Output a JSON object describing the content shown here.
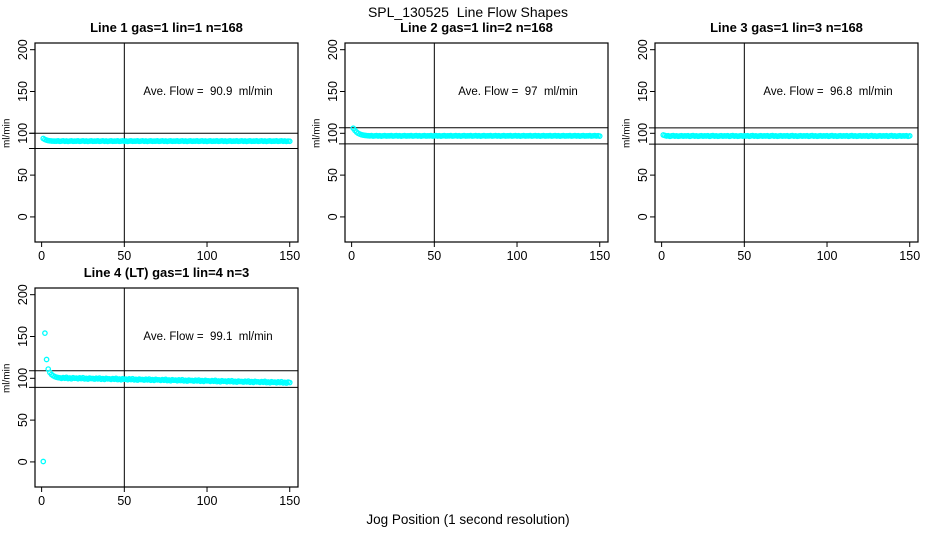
{
  "page": {
    "title": "SPL_130525  Line Flow Shapes",
    "xlabel": "Jog Position (1 second resolution)"
  },
  "style": {
    "point_color": "#00ffff",
    "line_color": "#000000",
    "background": "#ffffff"
  },
  "chart_data": [
    {
      "type": "scatter",
      "title": "Line 1 gas=1 lin=1 n=168",
      "annotation": "Ave. Flow =  90.9  ml/min",
      "ave_flow_ml_min": 90.9,
      "ylabel": "ml/min",
      "xlim": [
        -4,
        155
      ],
      "ylim": [
        -30,
        208
      ],
      "xticks": [
        0,
        50,
        100,
        150
      ],
      "yticks": [
        0,
        50,
        100,
        150,
        200
      ],
      "vline_x": 50,
      "hlines": [
        100.0,
        81.8
      ],
      "x_start": 1,
      "x_step": 1,
      "y": [
        93.8,
        92.6,
        91.8,
        91.3,
        91.0,
        90.8,
        90.7,
        90.6,
        90.6,
        90.9,
        90.4,
        90.7,
        91.0,
        90.5,
        90.8,
        90.3,
        90.7,
        90.9,
        90.5,
        90.6,
        90.6,
        90.9,
        90.4,
        90.7,
        91.0,
        90.5,
        90.8,
        90.3,
        90.7,
        90.9,
        90.5,
        90.6,
        90.6,
        90.9,
        90.4,
        90.7,
        91.0,
        90.5,
        90.8,
        90.3,
        90.7,
        90.9,
        90.5,
        90.6,
        90.6,
        90.9,
        90.4,
        90.7,
        91.0,
        90.5,
        90.8,
        90.3,
        90.7,
        90.9,
        90.5,
        90.6,
        90.6,
        90.9,
        90.4,
        90.7,
        91.0,
        90.5,
        90.8,
        90.3,
        90.7,
        90.9,
        90.5,
        90.6,
        90.6,
        90.9,
        90.4,
        90.7,
        91.0,
        90.5,
        90.8,
        90.3,
        90.7,
        90.9,
        90.5,
        90.6,
        90.6,
        90.9,
        90.4,
        90.7,
        91.0,
        90.5,
        90.8,
        90.3,
        90.7,
        90.9,
        90.5,
        90.6,
        90.6,
        90.9,
        90.4,
        90.7,
        91.0,
        90.5,
        90.8,
        90.3,
        90.7,
        90.9,
        90.5,
        90.6,
        90.6,
        90.9,
        90.4,
        90.7,
        91.0,
        90.5,
        90.8,
        90.3,
        90.7,
        90.9,
        90.5,
        90.6,
        90.6,
        90.9,
        90.4,
        90.7,
        91.0,
        90.5,
        90.8,
        90.3,
        90.7,
        90.9,
        90.5,
        90.6,
        90.6,
        90.9,
        90.4,
        90.7,
        91.0,
        90.5,
        90.8,
        90.3,
        90.7,
        90.9,
        90.5,
        90.6,
        90.6,
        90.9,
        90.4,
        90.7,
        91.0,
        90.5,
        90.8,
        90.3,
        90.7,
        90.5
      ]
    },
    {
      "type": "scatter",
      "title": "Line 2 gas=1 lin=2 n=168",
      "annotation": "Ave. Flow =  97  ml/min",
      "ave_flow_ml_min": 97,
      "ylabel": "ml/min",
      "xlim": [
        -4,
        155
      ],
      "ylim": [
        -30,
        208
      ],
      "xticks": [
        0,
        50,
        100,
        150
      ],
      "yticks": [
        0,
        50,
        100,
        150,
        200
      ],
      "vline_x": 50,
      "hlines": [
        106.7,
        87.3
      ],
      "x_start": 1,
      "x_step": 1,
      "y": [
        106.0,
        103.5,
        101.5,
        100.0,
        99.0,
        98.3,
        97.8,
        97.5,
        97.3,
        97.1,
        96.9,
        97.2,
        96.7,
        97.0,
        97.3,
        96.8,
        97.1,
        96.6,
        97.0,
        97.2,
        96.8,
        96.9,
        96.9,
        97.2,
        96.7,
        97.0,
        97.3,
        96.8,
        97.1,
        96.6,
        97.0,
        97.2,
        96.8,
        96.9,
        96.9,
        97.2,
        96.7,
        97.0,
        97.3,
        96.8,
        97.1,
        96.6,
        97.0,
        97.2,
        96.8,
        96.9,
        96.9,
        97.2,
        96.7,
        97.0,
        97.3,
        96.8,
        97.1,
        96.6,
        97.0,
        97.2,
        96.8,
        96.9,
        96.9,
        97.2,
        96.7,
        97.0,
        97.3,
        96.8,
        97.1,
        96.6,
        97.0,
        97.2,
        96.8,
        96.9,
        96.9,
        97.2,
        96.7,
        97.0,
        97.3,
        96.8,
        97.1,
        96.6,
        97.0,
        97.2,
        96.8,
        96.9,
        96.9,
        97.2,
        96.7,
        97.0,
        97.3,
        96.8,
        97.1,
        96.6,
        97.0,
        97.2,
        96.8,
        96.9,
        96.9,
        97.2,
        96.7,
        97.0,
        97.3,
        96.8,
        97.1,
        96.6,
        97.0,
        97.2,
        96.8,
        96.9,
        96.9,
        97.2,
        96.7,
        97.0,
        97.3,
        96.8,
        97.1,
        96.6,
        97.0,
        97.2,
        96.8,
        96.9,
        96.9,
        97.2,
        96.7,
        97.0,
        97.3,
        96.8,
        97.1,
        96.6,
        97.0,
        97.2,
        96.8,
        96.9,
        96.9,
        97.2,
        96.7,
        97.0,
        97.3,
        96.8,
        97.1,
        96.6,
        97.0,
        97.2,
        96.8,
        96.9,
        96.9,
        97.2,
        96.7,
        97.0,
        97.3,
        96.8,
        97.1,
        96.6
      ]
    },
    {
      "type": "scatter",
      "title": "Line 3 gas=1 lin=3 n=168",
      "annotation": "Ave. Flow =  96.8  ml/min",
      "ave_flow_ml_min": 96.8,
      "ylabel": "ml/min",
      "xlim": [
        -4,
        155
      ],
      "ylim": [
        -30,
        208
      ],
      "xticks": [
        0,
        50,
        100,
        150
      ],
      "yticks": [
        0,
        50,
        100,
        150,
        200
      ],
      "vline_x": 50,
      "hlines": [
        106.5,
        87.1
      ],
      "x_start": 1,
      "x_step": 1,
      "y": [
        98.0,
        97.4,
        96.8,
        97.1,
        96.4,
        96.9,
        97.2,
        96.6,
        97.0,
        96.5,
        96.8,
        97.1,
        96.6,
        96.9,
        96.8,
        97.1,
        96.4,
        96.9,
        97.2,
        96.6,
        97.0,
        96.5,
        96.8,
        97.1,
        96.6,
        96.9,
        96.8,
        97.1,
        96.4,
        96.9,
        97.2,
        96.6,
        97.0,
        96.5,
        96.8,
        97.1,
        96.6,
        96.9,
        96.8,
        97.1,
        96.4,
        96.9,
        97.2,
        96.6,
        97.0,
        96.5,
        96.8,
        97.1,
        96.6,
        96.9,
        96.8,
        97.1,
        96.4,
        96.9,
        97.2,
        96.6,
        97.0,
        96.5,
        96.8,
        97.1,
        96.6,
        96.9,
        96.8,
        97.1,
        96.4,
        96.9,
        97.2,
        96.6,
        97.0,
        96.5,
        96.8,
        97.1,
        96.6,
        96.9,
        96.8,
        97.1,
        96.4,
        96.9,
        97.2,
        96.6,
        97.0,
        96.5,
        96.8,
        97.1,
        96.6,
        96.9,
        96.8,
        97.1,
        96.4,
        96.9,
        97.2,
        96.6,
        97.0,
        96.5,
        96.8,
        97.1,
        96.6,
        96.9,
        96.8,
        97.1,
        96.4,
        96.9,
        97.2,
        96.6,
        97.0,
        96.5,
        96.8,
        97.1,
        96.6,
        96.9,
        96.8,
        97.1,
        96.4,
        96.9,
        97.2,
        96.6,
        97.0,
        96.5,
        96.8,
        97.1,
        96.6,
        96.9,
        96.8,
        97.1,
        96.4,
        96.9,
        97.2,
        96.6,
        97.0,
        96.5,
        96.8,
        97.1,
        96.6,
        96.9,
        96.8,
        97.1,
        96.4,
        96.9,
        97.2,
        96.6,
        97.0,
        96.5,
        96.8,
        97.1,
        96.6,
        96.9,
        96.8,
        97.1,
        96.4,
        96.9
      ]
    },
    {
      "type": "scatter",
      "title": "Line 4 (LT) gas=1 lin=4 n=3",
      "annotation": "Ave. Flow =  99.1  ml/min",
      "ave_flow_ml_min": 99.1,
      "ylabel": "ml/min",
      "xlim": [
        -4,
        155
      ],
      "ylim": [
        -30,
        208
      ],
      "xticks": [
        0,
        50,
        100,
        150
      ],
      "yticks": [
        0,
        50,
        100,
        150,
        200
      ],
      "vline_x": 50,
      "hlines": [
        109.0,
        89.2
      ],
      "x_start": 1,
      "x_step": 1,
      "y": [
        0.5,
        154.0,
        122.5,
        111.0,
        107.0,
        104.5,
        103.0,
        102.0,
        101.3,
        100.8,
        100.6,
        99.9,
        100.9,
        100.1,
        101.1,
        99.7,
        100.4,
        99.5,
        100.7,
        100.1,
        100.2,
        99.5,
        100.5,
        99.7,
        100.7,
        99.3,
        100.0,
        99.1,
        100.3,
        99.7,
        99.8,
        99.1,
        100.1,
        99.3,
        100.3,
        98.9,
        99.6,
        98.7,
        99.9,
        99.3,
        99.4,
        98.7,
        99.7,
        98.9,
        99.9,
        98.5,
        99.2,
        98.3,
        99.5,
        98.9,
        99.0,
        98.3,
        99.3,
        98.5,
        99.5,
        98.1,
        98.8,
        97.9,
        99.1,
        98.5,
        98.6,
        97.9,
        98.9,
        98.1,
        99.1,
        97.7,
        98.4,
        97.5,
        98.7,
        98.1,
        98.2,
        97.5,
        98.5,
        97.7,
        98.7,
        97.3,
        98.0,
        97.1,
        98.3,
        97.7,
        97.8,
        97.1,
        98.1,
        97.3,
        98.3,
        96.9,
        97.6,
        96.7,
        97.9,
        97.3,
        97.4,
        96.7,
        97.7,
        96.9,
        97.9,
        96.5,
        97.2,
        96.3,
        97.5,
        96.9,
        97.0,
        96.3,
        97.3,
        96.5,
        97.5,
        96.1,
        96.8,
        95.9,
        97.1,
        96.5,
        96.6,
        95.9,
        96.9,
        96.1,
        97.1,
        95.7,
        96.4,
        95.5,
        96.7,
        96.1,
        96.2,
        95.5,
        96.5,
        95.7,
        96.7,
        95.3,
        96.0,
        95.1,
        96.3,
        95.7,
        95.8,
        95.1,
        96.1,
        95.3,
        96.3,
        94.9,
        95.6,
        94.7,
        95.9,
        95.3,
        95.4,
        94.7,
        95.7,
        94.9,
        95.9,
        94.5,
        95.2,
        94.3,
        95.5,
        94.9
      ]
    }
  ]
}
